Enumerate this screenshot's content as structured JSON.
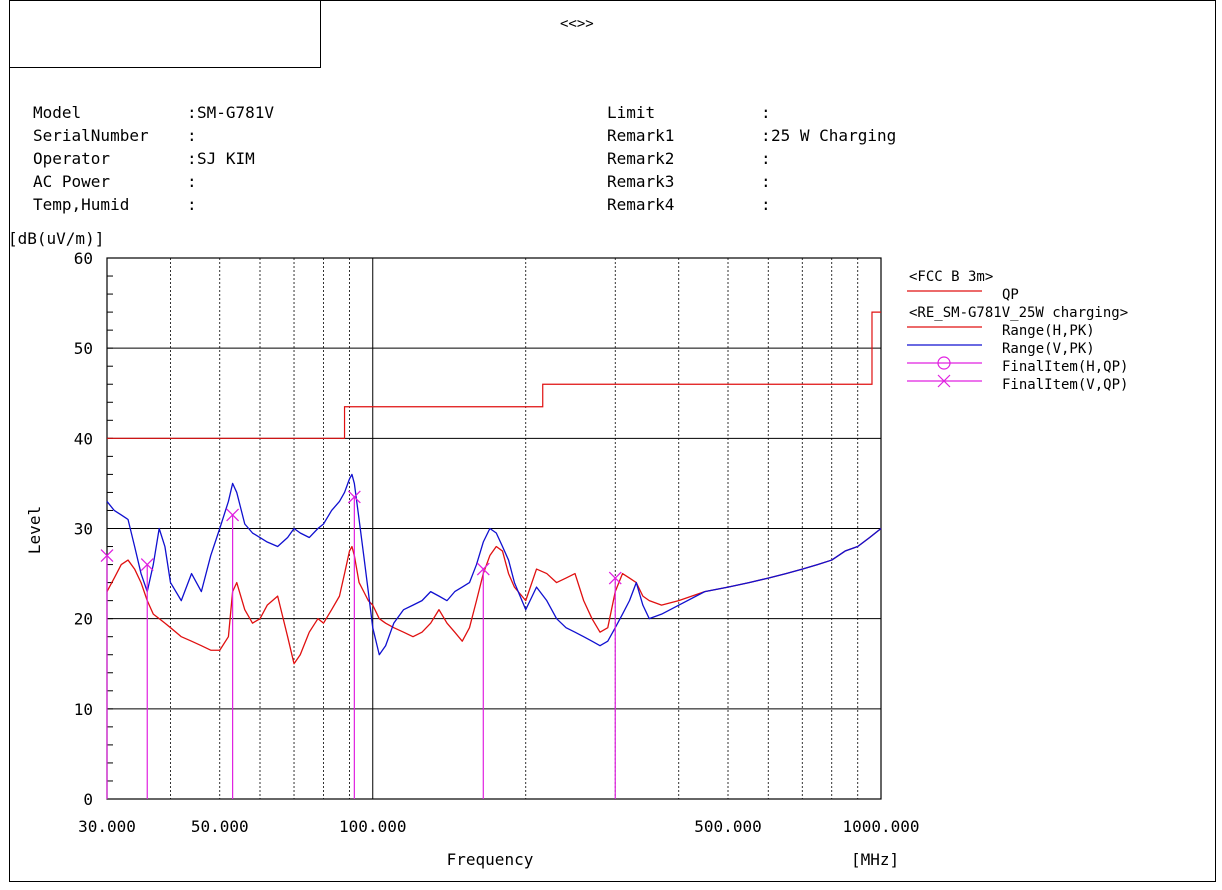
{
  "header": {
    "title": "<<>>",
    "left": [
      {
        "label": "Model",
        "value": "SM-G781V"
      },
      {
        "label": "SerialNumber",
        "value": ""
      },
      {
        "label": "Operator",
        "value": "SJ KIM"
      },
      {
        "label": "AC Power",
        "value": ""
      },
      {
        "label": "Temp,Humid",
        "value": ""
      }
    ],
    "right": [
      {
        "label": "Limit",
        "value": ""
      },
      {
        "label": "Remark1",
        "value": "25 W Charging"
      },
      {
        "label": "Remark2",
        "value": ""
      },
      {
        "label": "Remark3",
        "value": ""
      },
      {
        "label": "Remark4",
        "value": ""
      }
    ]
  },
  "chart_data": {
    "type": "line",
    "title": "",
    "xlabel": "Frequency",
    "xunit": "[MHz]",
    "ylabel": "Level",
    "yunit": "[dB(uV/m)]",
    "xscale": "log",
    "xlim": [
      30,
      1000
    ],
    "ylim": [
      0,
      60
    ],
    "xticks": [
      {
        "value": 30,
        "label": "30.000"
      },
      {
        "value": 50,
        "label": "50.000"
      },
      {
        "value": 100,
        "label": "100.000"
      },
      {
        "value": 500,
        "label": "500.000"
      },
      {
        "value": 1000,
        "label": "1000.000"
      }
    ],
    "yticks": [
      0,
      10,
      20,
      30,
      40,
      50,
      60
    ],
    "grid": true,
    "legend_position": "right",
    "legend": [
      {
        "text": "<FCC B 3m>",
        "kind": "heading"
      },
      {
        "text": "QP",
        "kind": "line",
        "color": "#e01010"
      },
      {
        "text": "<RE_SM-G781V_25W charging>",
        "kind": "heading"
      },
      {
        "text": "Range(H,PK)",
        "kind": "line",
        "color": "#e01010"
      },
      {
        "text": "Range(V,PK)",
        "kind": "line",
        "color": "#1010d0"
      },
      {
        "text": "FinalItem(H,QP)",
        "kind": "circle",
        "color": "#e020e0"
      },
      {
        "text": "FinalItem(V,QP)",
        "kind": "cross",
        "color": "#e020e0"
      }
    ],
    "limit": {
      "name": "QP",
      "color": "#e01010",
      "steps": [
        [
          30,
          40
        ],
        [
          88,
          40
        ],
        [
          88,
          43.5
        ],
        [
          216,
          43.5
        ],
        [
          216,
          46
        ],
        [
          960,
          46
        ],
        [
          960,
          54
        ],
        [
          1000,
          54
        ]
      ]
    },
    "series": [
      {
        "name": "Range(H,PK)",
        "color": "#e01010",
        "x": [
          30,
          31,
          32,
          33,
          34,
          35,
          36,
          37,
          38,
          39,
          40,
          42,
          44,
          46,
          48,
          50,
          52,
          53,
          54,
          56,
          58,
          60,
          62,
          65,
          68,
          70,
          72,
          75,
          78,
          80,
          83,
          86,
          88,
          90,
          91,
          92,
          94,
          96,
          98,
          100,
          103,
          106,
          110,
          115,
          120,
          125,
          130,
          135,
          140,
          145,
          150,
          155,
          160,
          165,
          170,
          175,
          180,
          185,
          190,
          200,
          210,
          220,
          230,
          240,
          250,
          260,
          270,
          280,
          290,
          300,
          310,
          320,
          330,
          340,
          350,
          370,
          400,
          450,
          500,
          550,
          600,
          650,
          700,
          750,
          800,
          850,
          900,
          950,
          1000
        ],
        "y": [
          23,
          24.5,
          26,
          26.5,
          25.5,
          24,
          22,
          20.5,
          20,
          19.5,
          19,
          18,
          17.5,
          17,
          16.5,
          16.5,
          18,
          23,
          24,
          21,
          19.5,
          20,
          21.5,
          22.5,
          18,
          15,
          16,
          18.5,
          20,
          19.5,
          21,
          22.5,
          25,
          27.5,
          28,
          27,
          24,
          23,
          22,
          21.5,
          20,
          19.5,
          19,
          18.5,
          18,
          18.5,
          19.5,
          21,
          19.5,
          18.5,
          17.5,
          19,
          22,
          25,
          27,
          28,
          27.5,
          25,
          23.5,
          22,
          25.5,
          25,
          24,
          24.5,
          25,
          22,
          20,
          18.5,
          19,
          23,
          25,
          24.5,
          24,
          22.5,
          22,
          21.5,
          22,
          23,
          23.5,
          24,
          24.5,
          25,
          25.5,
          26,
          26.5,
          27.5,
          28,
          29,
          30
        ]
      },
      {
        "name": "Range(V,PK)",
        "color": "#1010d0",
        "x": [
          30,
          31,
          32,
          33,
          34,
          35,
          36,
          37,
          38,
          39,
          40,
          42,
          44,
          46,
          48,
          50,
          52,
          53,
          54,
          56,
          58,
          60,
          62,
          65,
          68,
          70,
          72,
          75,
          78,
          80,
          83,
          86,
          88,
          90,
          91,
          92,
          94,
          96,
          98,
          100,
          103,
          106,
          110,
          115,
          120,
          125,
          130,
          135,
          140,
          145,
          150,
          155,
          160,
          165,
          170,
          175,
          180,
          185,
          190,
          200,
          210,
          220,
          230,
          240,
          250,
          260,
          270,
          280,
          290,
          300,
          310,
          320,
          330,
          340,
          350,
          370,
          400,
          450,
          500,
          550,
          600,
          650,
          700,
          750,
          800,
          850,
          900,
          950,
          1000
        ],
        "y": [
          33,
          32,
          31.5,
          31,
          28,
          25,
          23,
          26,
          30,
          28,
          24,
          22,
          25,
          23,
          27,
          30,
          33,
          35,
          34,
          30.5,
          29.5,
          29,
          28.5,
          28,
          29,
          30,
          29.5,
          29,
          30,
          30.5,
          32,
          33,
          34,
          35.5,
          36,
          35,
          31,
          27,
          23,
          19,
          16,
          17,
          19.5,
          21,
          21.5,
          22,
          23,
          22.5,
          22,
          23,
          23.5,
          24,
          26,
          28.5,
          30,
          29.5,
          28,
          26.5,
          24,
          21,
          23.5,
          22,
          20,
          19,
          18.5,
          18,
          17.5,
          17,
          17.5,
          19,
          20.5,
          22,
          24,
          21.5,
          20,
          20.5,
          21.5,
          23,
          23.5,
          24,
          24.5,
          25,
          25.5,
          26,
          26.5,
          27.5,
          28,
          29,
          30
        ]
      },
      {
        "name": "FinalItem(V,QP)",
        "color": "#e020e0",
        "x": [
          30,
          36,
          53,
          92,
          165,
          300
        ],
        "y": [
          27,
          26,
          31.5,
          33.5,
          25.5,
          24.5
        ]
      }
    ]
  }
}
